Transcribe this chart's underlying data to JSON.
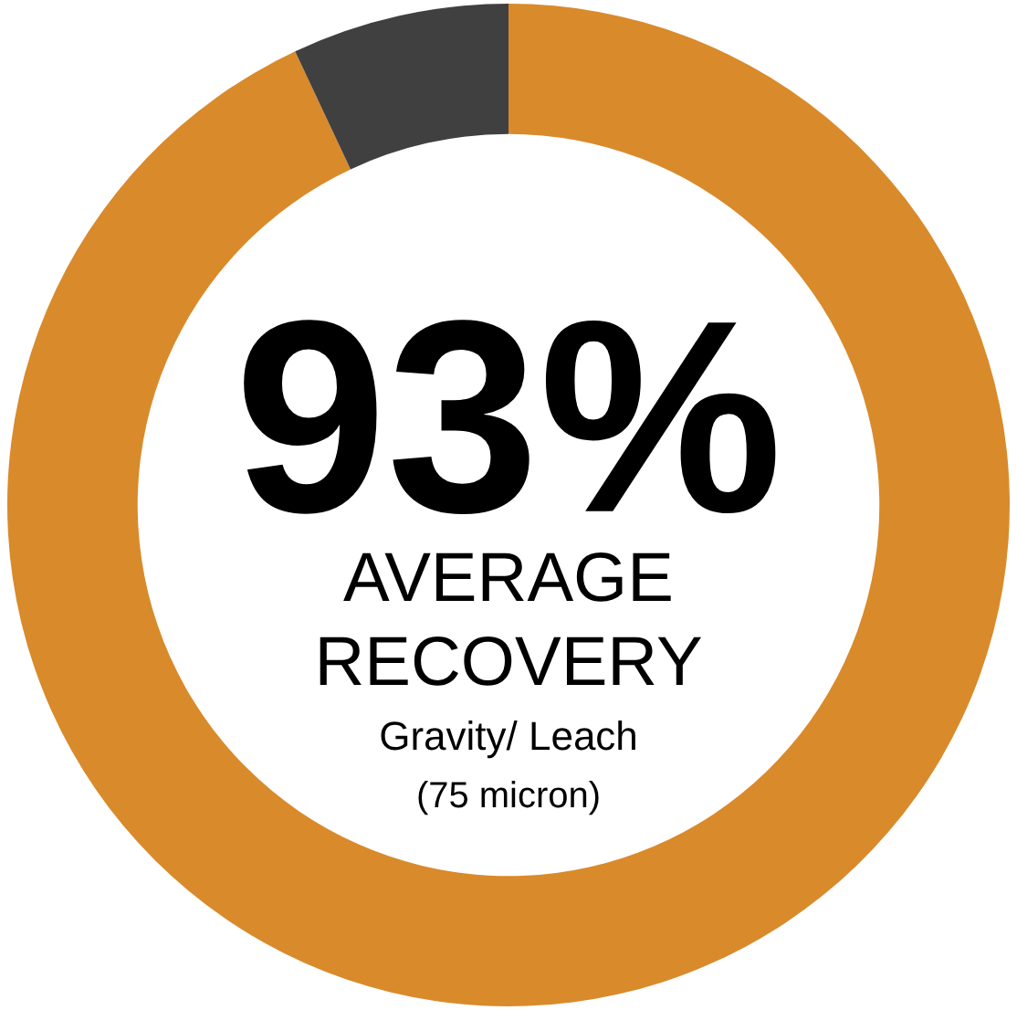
{
  "chart_data": {
    "type": "donut",
    "categories": [
      null,
      null
    ],
    "values": [
      93,
      7
    ],
    "colors": [
      "#d98a2b",
      "#404040"
    ],
    "annotations": [
      "93%",
      "AVERAGE",
      "RECOVERY",
      "Gravity/ Leach",
      "(75 micron)"
    ],
    "legend": false
  }
}
